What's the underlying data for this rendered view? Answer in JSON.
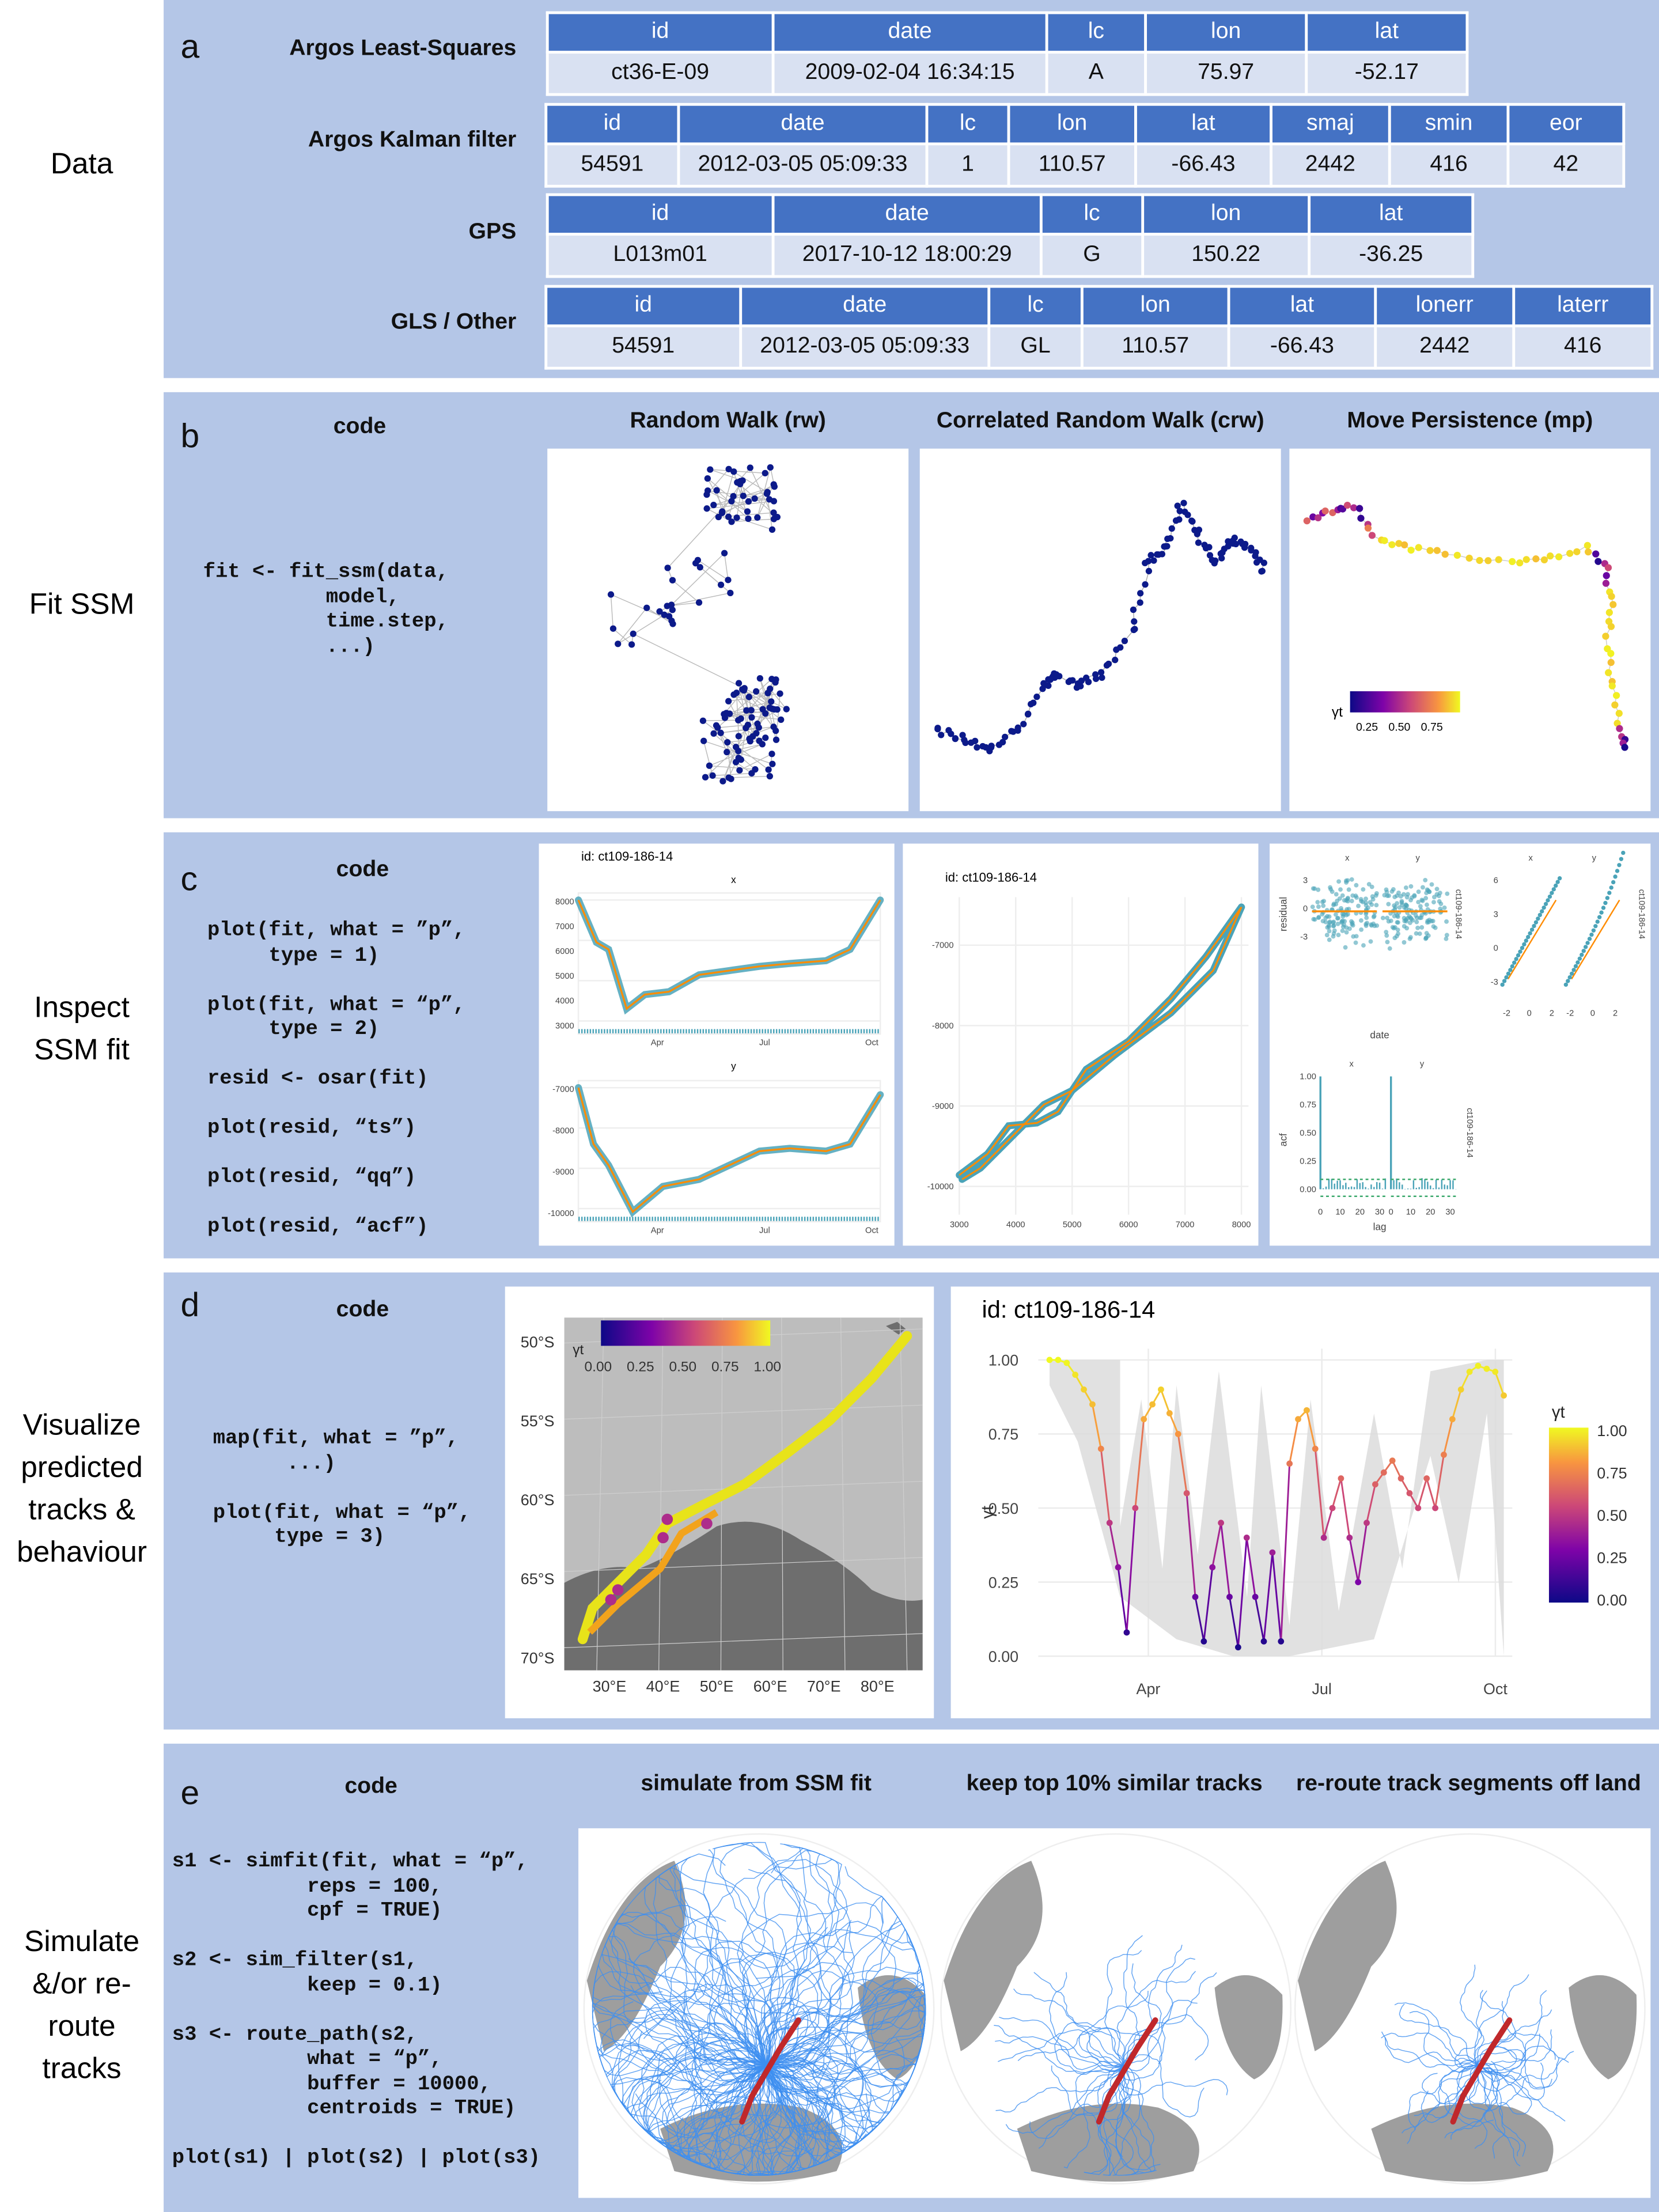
{
  "panel_a": {
    "letter": "a",
    "row_label": "Data",
    "tables": [
      {
        "label": "Argos Least-Squares",
        "headers": [
          "id",
          "date",
          "lc",
          "lon",
          "lat"
        ],
        "row": [
          "ct36-E-09",
          "2009-02-04 16:34:15",
          "A",
          "75.97",
          "-52.17"
        ]
      },
      {
        "label": "Argos Kalman filter",
        "headers": [
          "id",
          "date",
          "lc",
          "lon",
          "lat",
          "smaj",
          "smin",
          "eor"
        ],
        "row": [
          "54591",
          "2012-03-05 05:09:33",
          "1",
          "110.57",
          "-66.43",
          "2442",
          "416",
          "42"
        ]
      },
      {
        "label": "GPS",
        "headers": [
          "id",
          "date",
          "lc",
          "lon",
          "lat"
        ],
        "row": [
          "L013m01",
          "2017-10-12 18:00:29",
          "G",
          "150.22",
          "-36.25"
        ]
      },
      {
        "label": "GLS / Other",
        "headers": [
          "id",
          "date",
          "lc",
          "lon",
          "lat",
          "lonerr",
          "laterr"
        ],
        "row": [
          "54591",
          "2012-03-05 05:09:33",
          "GL",
          "110.57",
          "-66.43",
          "2442",
          "416"
        ]
      }
    ]
  },
  "panel_b": {
    "letter": "b",
    "row_label": "Fit SSM",
    "code_title": "code",
    "code": "fit <- fit_ssm(data,\n          model,\n          time.step,\n          ...)",
    "titles": [
      "Random Walk (rw)",
      "Correlated Random Walk (crw)",
      "Move Persistence (mp)"
    ],
    "legend_symbol": "γt",
    "legend_ticks": [
      "0.25",
      "0.50",
      "0.75"
    ]
  },
  "panel_c": {
    "letter": "c",
    "row_label": "Inspect SSM fit",
    "code_title": "code",
    "code": "plot(fit, what = ”p”,\n     type = 1)\n\nplot(fit, what = “p”,\n     type = 2)\n\nresid <- osar(fit)\n\nplot(resid, “ts”)\n\nplot(resid, “qq”)\n\nplot(resid, “acf”)",
    "id_label": "id: ct109-186-14",
    "ts_x_title": "x",
    "ts_y_title": "y",
    "ts_x_ticks": [
      "3000",
      "4000",
      "5000",
      "6000",
      "7000",
      "8000"
    ],
    "ts_y_ticks": [
      "-7000",
      "-8000",
      "-9000",
      "-10000"
    ],
    "months": [
      "Apr",
      "Jul",
      "Oct"
    ],
    "xy_y_ticks": [
      "-7000",
      "-8000",
      "-9000",
      "-10000"
    ],
    "xy_x_ticks": [
      "3000",
      "4000",
      "5000",
      "6000",
      "7000",
      "8000"
    ],
    "resid_facets": [
      "x",
      "y"
    ],
    "resid_ylabel": "residual",
    "resid_xlabel": "date",
    "resid_ticks": [
      "3",
      "0",
      "-3"
    ],
    "strip_label": "ct109-186-14",
    "qq_ticks_y": [
      "6",
      "3",
      "0",
      "-3"
    ],
    "qq_ticks_x": [
      "-2",
      "0",
      "2",
      "-2",
      "0",
      "2"
    ],
    "acf_ylabel": "acf",
    "acf_xlabel": "lag",
    "acf_ticks_y": [
      "1.00",
      "0.75",
      "0.50",
      "0.25",
      "0.00"
    ],
    "acf_ticks_x": [
      "0",
      "10",
      "20",
      "30"
    ]
  },
  "panel_d": {
    "letter": "d",
    "row_label": "Visualize predicted tracks & behaviour",
    "code_title": "code",
    "code": "map(fit, what = ”p”,\n      ...)\n\nplot(fit, what = “p”,\n     type = 3)",
    "map_lat_ticks": [
      "50°S",
      "55°S",
      "60°S",
      "65°S",
      "70°S"
    ],
    "map_lon_ticks": [
      "30°E",
      "40°E",
      "50°E",
      "60°E",
      "70°E",
      "80°E"
    ],
    "legend_symbol": "γt",
    "legend_ticks": [
      "0.00",
      "0.25",
      "0.50",
      "0.75",
      "1.00"
    ],
    "ts_id": "id: ct109-186-14",
    "ts_ylabel": "γt",
    "ts_y_ticks": [
      "1.00",
      "0.75",
      "0.50",
      "0.25",
      "0.00"
    ],
    "ts_x_ticks": [
      "Apr",
      "Jul",
      "Oct"
    ]
  },
  "panel_e": {
    "letter": "e",
    "row_label": "Simulate &/or re-route tracks",
    "code_title": "code",
    "code": "s1 <- simfit(fit, what = “p”,\n           reps = 100,\n           cpf = TRUE)\n\ns2 <- sim_filter(s1,\n           keep = 0.1)\n\ns3 <- route_path(s2,\n           what = “p”,\n           buffer = 10000,\n           centroids = TRUE)\n\nplot(s1) | plot(s2) | plot(s3)",
    "titles": [
      "simulate from SSM fit",
      "keep top 10% similar tracks",
      "re-route track segments off land"
    ]
  },
  "colors": {
    "band": "#b4c6e7",
    "header": "#4472c4",
    "cell": "#d9e1f2",
    "point_dark": "#0c1a8a",
    "resid": "#4aa3b8",
    "fit": "#ff8c00",
    "sim": "#3d8ef0",
    "track": "#c0282b"
  }
}
